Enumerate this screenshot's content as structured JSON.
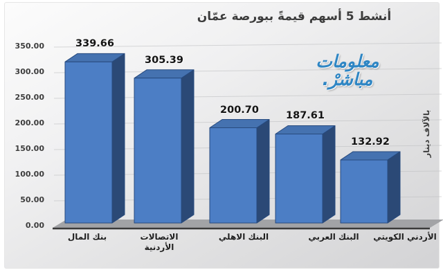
{
  "title": "أنشط 5 أسهم قيمةً ببورصة عمّان",
  "watermark": {
    "line1": "معلومات",
    "line2": "مباشرْ.",
    "color": "#2f86c4"
  },
  "y_axis": {
    "title": "بالآلاف دينار",
    "ticks": [
      "350.00",
      "300.00",
      "250.00",
      "200.00",
      "150.00",
      "100.00",
      "50.00",
      "0.00"
    ]
  },
  "chart_data": {
    "type": "bar",
    "style": "3d",
    "title": "أنشط 5 أسهم قيمةً ببورصة عمّان",
    "categories": [
      "بنك المال",
      "الاتصالات الأردنية",
      "البنك الاهلي",
      "البنك العربي",
      "الأردني الكويتي"
    ],
    "values": [
      339.66,
      305.39,
      200.7,
      187.61,
      132.92
    ],
    "value_labels": [
      "339.66",
      "305.39",
      "200.70",
      "187.61",
      "132.92"
    ],
    "xlabel": "",
    "ylabel": "بالآلاف دينار",
    "ylim": [
      0,
      350
    ],
    "ytick_step": 50,
    "grid": true,
    "legend": false,
    "bar_front_color": "#4c7ec5",
    "bar_side_color": "#2b4976",
    "bar_top_color": "#4572b0",
    "bar_outline_color": "#274a7e",
    "floor_color": "#a2a3a6"
  }
}
